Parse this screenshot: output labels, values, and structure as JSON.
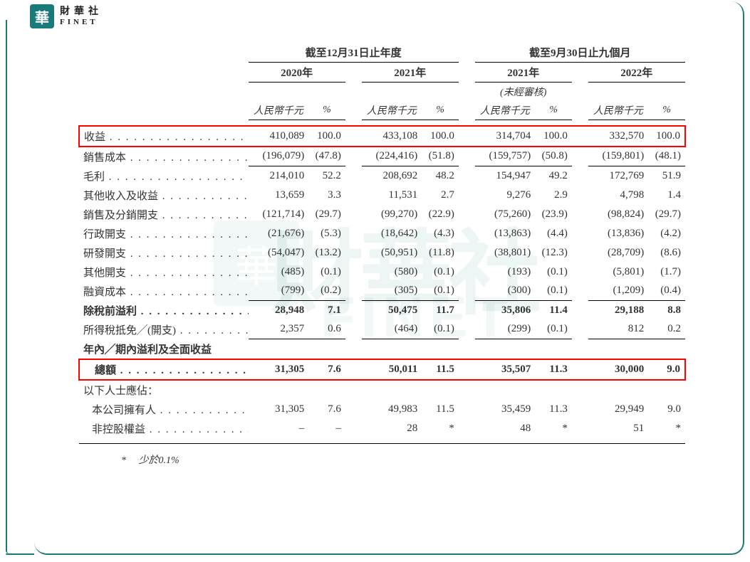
{
  "brand": {
    "logo_char": "華",
    "name_cn": "財華社",
    "name_en": "FINET"
  },
  "watermark": {
    "main": "財華社",
    "sub": "FINET"
  },
  "periods": {
    "full_year": "截至12月31日止年度",
    "nine_month": "截至9月30日止九個月",
    "years": [
      "2020年",
      "2021年",
      "2021年",
      "2022年"
    ],
    "unaudited": "(未經審核)",
    "unit": "人民幣千元",
    "pct": "%"
  },
  "rows": {
    "revenue": {
      "label": "收益",
      "y20v": "410,089",
      "y20p": "100.0",
      "y21v": "433,108",
      "y21p": "100.0",
      "m21v": "314,704",
      "m21p": "100.0",
      "m22v": "332,570",
      "m22p": "100.0",
      "bold": false,
      "hl": true
    },
    "cogs": {
      "label": "銷售成本",
      "y20v": "(196,079)",
      "y20p": "(47.8)",
      "y21v": "(224,416)",
      "y21p": "(51.8)",
      "m21v": "(159,757)",
      "m21p": "(50.8)",
      "m22v": "(159,801)",
      "m22p": "(48.1)"
    },
    "gross": {
      "label": "毛利",
      "y20v": "214,010",
      "y20p": "52.2",
      "y21v": "208,692",
      "y21p": "48.2",
      "m21v": "154,947",
      "m21p": "49.2",
      "m22v": "172,769",
      "m22p": "51.9",
      "topline": true
    },
    "other_income": {
      "label": "其他收入及收益",
      "y20v": "13,659",
      "y20p": "3.3",
      "y21v": "11,531",
      "y21p": "2.7",
      "m21v": "9,276",
      "m21p": "2.9",
      "m22v": "4,798",
      "m22p": "1.4"
    },
    "selling": {
      "label": "銷售及分銷開支",
      "y20v": "(121,714)",
      "y20p": "(29.7)",
      "y21v": "(99,270)",
      "y21p": "(22.9)",
      "m21v": "(75,260)",
      "m21p": "(23.9)",
      "m22v": "(98,824)",
      "m22p": "(29.7)"
    },
    "admin": {
      "label": "行政開支",
      "y20v": "(21,676)",
      "y20p": "(5.3)",
      "y21v": "(18,642)",
      "y21p": "(4.3)",
      "m21v": "(13,863)",
      "m21p": "(4.4)",
      "m22v": "(13,836)",
      "m22p": "(4.2)"
    },
    "rnd": {
      "label": "研發開支",
      "y20v": "(54,047)",
      "y20p": "(13.2)",
      "y21v": "(50,951)",
      "y21p": "(11.8)",
      "m21v": "(38,801)",
      "m21p": "(12.3)",
      "m22v": "(28,709)",
      "m22p": "(8.6)"
    },
    "other_exp": {
      "label": "其他開支",
      "y20v": "(485)",
      "y20p": "(0.1)",
      "y21v": "(580)",
      "y21p": "(0.1)",
      "m21v": "(193)",
      "m21p": "(0.1)",
      "m22v": "(5,801)",
      "m22p": "(1.7)"
    },
    "finance": {
      "label": "融資成本",
      "y20v": "(799)",
      "y20p": "(0.2)",
      "y21v": "(305)",
      "y21p": "(0.1)",
      "m21v": "(300)",
      "m21p": "(0.1)",
      "m22v": "(1,209)",
      "m22p": "(0.4)"
    },
    "pbt": {
      "label": "除稅前溢利",
      "y20v": "28,948",
      "y20p": "7.1",
      "y21v": "50,475",
      "y21p": "11.7",
      "m21v": "35,806",
      "m21p": "11.4",
      "m22v": "29,188",
      "m22p": "8.8",
      "bold": true,
      "topline": true
    },
    "tax": {
      "label": "所得稅抵免╱(開支)",
      "y20v": "2,357",
      "y20p": "0.6",
      "y21v": "(464)",
      "y21p": "(0.1)",
      "m21v": "(299)",
      "m21p": "(0.1)",
      "m22v": "812",
      "m22p": "0.2"
    },
    "pretotal": {
      "label": "年內╱期內溢利及全面收益"
    },
    "total": {
      "label": "　總額",
      "y20v": "31,305",
      "y20p": "7.6",
      "y21v": "50,011",
      "y21p": "11.5",
      "m21v": "35,507",
      "m21p": "11.3",
      "m22v": "30,000",
      "m22p": "9.0",
      "bold": true,
      "hl": true,
      "dbl": true
    },
    "attrib_header": {
      "label": "以下人士應佔："
    },
    "owners": {
      "label": "本公司擁有人",
      "y20v": "31,305",
      "y20p": "7.6",
      "y21v": "49,983",
      "y21p": "11.5",
      "m21v": "35,459",
      "m21p": "11.3",
      "m22v": "29,949",
      "m22p": "9.0",
      "indent": true
    },
    "nci": {
      "label": "非控股權益",
      "y20v": "–",
      "y20p": "–",
      "y21v": "28",
      "y21p": "*",
      "m21v": "48",
      "m21p": "*",
      "m22v": "51",
      "m22p": "*",
      "indent": true
    }
  },
  "footnote": {
    "marker": "*",
    "text": "少於0.1%"
  },
  "colors": {
    "accent": "#1a7a7a",
    "highlight": "#ff0000",
    "text": "#333333",
    "bg": "#ffffff"
  },
  "fontsize": {
    "body": 15,
    "header": 15,
    "footnote": 14
  }
}
